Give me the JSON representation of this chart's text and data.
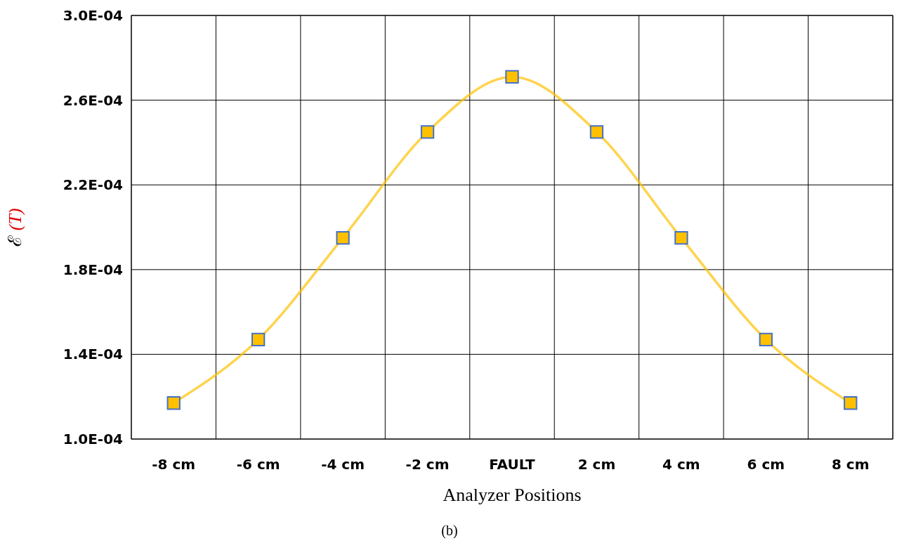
{
  "chart_data": {
    "type": "line",
    "xlabel": "Analyzer Positions",
    "ylabel": "ℰ (T)",
    "categories": [
      "-8 cm",
      "-6 cm",
      "-4 cm",
      "-2 cm",
      "FAULT",
      "2 cm",
      "4 cm",
      "6 cm",
      "8 cm"
    ],
    "series": [
      {
        "color": "#ffc000",
        "values": [
          0.000117,
          0.000147,
          0.000195,
          0.000245,
          0.000271,
          0.000245,
          0.000195,
          0.000147,
          0.000117
        ]
      }
    ],
    "ylim": [
      0.0001,
      0.0003
    ],
    "yticks": [
      {
        "value": 0.0001,
        "label": "1.0E-04"
      },
      {
        "value": 0.00014,
        "label": "1.4E-04"
      },
      {
        "value": 0.00018,
        "label": "1.8E-04"
      },
      {
        "value": 0.00022,
        "label": "2.2E-04"
      },
      {
        "value": 0.00026,
        "label": "2.6E-04"
      },
      {
        "value": 0.0003,
        "label": "3.0E-04"
      }
    ],
    "grid": true,
    "marker": "square",
    "annotations": [
      "(b)"
    ]
  }
}
